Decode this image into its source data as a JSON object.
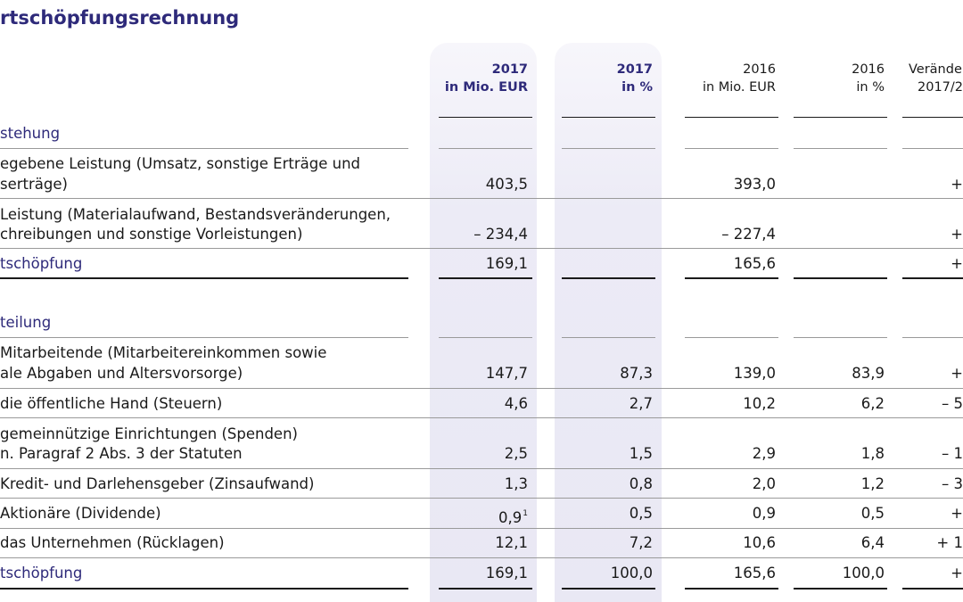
{
  "title": "rtschöpfungsrechnung",
  "columns": [
    {
      "line1": "2017",
      "line2": "in Mio. EUR",
      "accent": true
    },
    {
      "line1": "2017",
      "line2": "in %",
      "accent": true
    },
    {
      "line1": "2016",
      "line2": "in Mio. EUR",
      "accent": false
    },
    {
      "line1": "2016",
      "line2": "in %",
      "accent": false
    },
    {
      "line1": "Verände",
      "line2": "2017/2",
      "accent": false
    }
  ],
  "accent_color": "#2e2a7a",
  "sections": {
    "entstehung": "stehung",
    "verteilung": "teilung"
  },
  "rows": {
    "abgegebene": {
      "label1": "egebene Leistung (Umsatz, sonstige Erträge und",
      "label2": "serträge)",
      "v": [
        "403,5",
        "",
        "393,0",
        "",
        "+"
      ]
    },
    "vorleistung": {
      "label1": "Leistung (Materialaufwand, Bestandsveränderungen,",
      "label2": "chreibungen und sonstige Vorleistungen)",
      "v": [
        "– 234,4",
        "",
        "– 227,4",
        "",
        "+"
      ]
    },
    "wertschoepfung1": {
      "label": "tschöpfung",
      "v": [
        "169,1",
        "",
        "165,6",
        "",
        "+"
      ]
    },
    "mitarbeitende": {
      "label1": "Mitarbeitende (Mitarbeitereinkommen sowie",
      "label2": "ale Abgaben und Altersvorsorge)",
      "v": [
        "147,7",
        "87,3",
        "139,0",
        "83,9",
        "+"
      ]
    },
    "hand": {
      "label": "die öffentliche Hand (Steuern)",
      "v": [
        "4,6",
        "2,7",
        "10,2",
        "6,2",
        "– 5"
      ]
    },
    "gemeinnuetzig": {
      "label1": "gemeinnützige Einrichtungen (Spenden)",
      "label2": "n. Paragraf 2 Abs. 3 der Statuten",
      "v": [
        "2,5",
        "1,5",
        "2,9",
        "1,8",
        "– 1"
      ]
    },
    "kredit": {
      "label": "Kredit- und Darlehensgeber (Zinsaufwand)",
      "v": [
        "1,3",
        "0,8",
        "2,0",
        "1,2",
        "– 3"
      ]
    },
    "aktionaere": {
      "label": "Aktionäre (Dividende)",
      "v": [
        "0,9",
        "0,5",
        "0,9",
        "0,5",
        "+"
      ],
      "footnote": "1"
    },
    "unternehmen": {
      "label": "das Unternehmen (Rücklagen)",
      "v": [
        "12,1",
        "7,2",
        "10,6",
        "6,4",
        "+ 1"
      ]
    },
    "wertschoepfung2": {
      "label": "tschöpfung",
      "v": [
        "169,1",
        "100,0",
        "165,6",
        "100,0",
        "+"
      ]
    }
  }
}
